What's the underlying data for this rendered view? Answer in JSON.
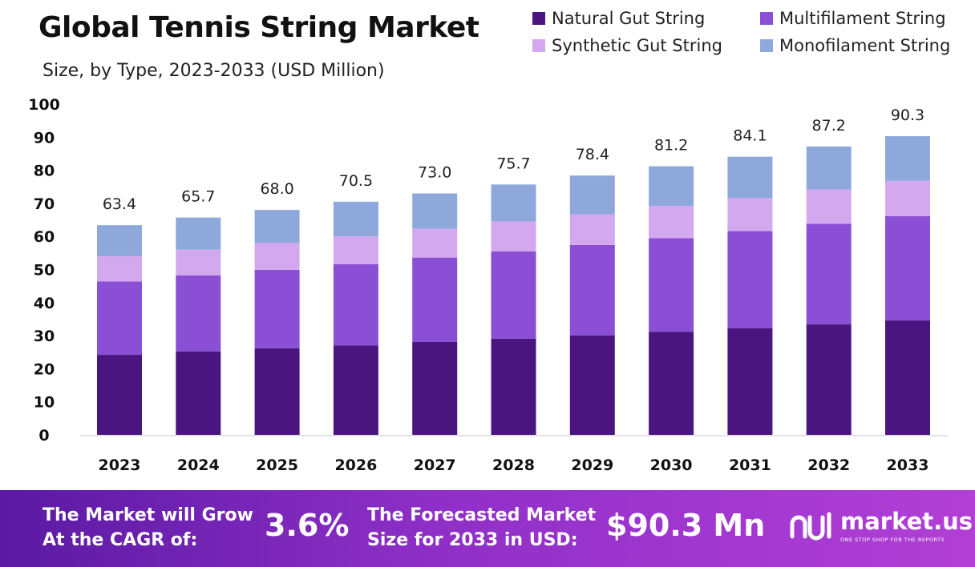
{
  "chart_data": {
    "type": "bar",
    "stacked": true,
    "title": "Global Tennis String Market",
    "subtitle": "Size, by Type, 2023-2033 (USD Million)",
    "categories": [
      "2023",
      "2024",
      "2025",
      "2026",
      "2027",
      "2028",
      "2029",
      "2030",
      "2031",
      "2032",
      "2033"
    ],
    "totals": [
      "63.4",
      "65.7",
      "68.0",
      "70.5",
      "73.0",
      "75.7",
      "78.4",
      "81.2",
      "84.1",
      "87.2",
      "90.3"
    ],
    "series": [
      {
        "name": "Natural Gut String",
        "color": "#4b1580",
        "values": [
          24.2,
          25.2,
          26.2,
          27.0,
          28.1,
          29.1,
          30.1,
          31.2,
          32.2,
          33.4,
          34.6
        ]
      },
      {
        "name": "Multifilament String",
        "color": "#8a4fd4",
        "values": [
          22.2,
          23.0,
          23.7,
          24.6,
          25.5,
          26.4,
          27.3,
          28.3,
          29.4,
          30.4,
          31.5
        ]
      },
      {
        "name": "Synthetic Gut String",
        "color": "#d4a8ee",
        "values": [
          7.6,
          7.8,
          8.1,
          8.4,
          8.7,
          9.0,
          9.3,
          9.7,
          10.0,
          10.4,
          10.7
        ]
      },
      {
        "name": "Monofilament String",
        "color": "#8fa8dc",
        "values": [
          9.4,
          9.7,
          10.0,
          10.5,
          10.7,
          11.2,
          11.7,
          12.0,
          12.5,
          13.0,
          13.5
        ]
      }
    ],
    "ylim": [
      0,
      100
    ],
    "yticks": [
      0,
      10,
      20,
      30,
      40,
      50,
      60,
      70,
      80,
      90,
      100
    ],
    "grid": false,
    "legend_position": "top-right"
  },
  "footer": {
    "cagr_label_line1": "The Market will Grow",
    "cagr_label_line2": "At the CAGR of:",
    "cagr_value": "3.6%",
    "forecast_label_line1": "The Forecasted Market",
    "forecast_label_line2": "Size for 2033 in USD:",
    "forecast_value": "$90.3 Mn",
    "brand_name": "market.us",
    "brand_tagline": "ONE STOP SHOP FOR THE REPORTS"
  }
}
